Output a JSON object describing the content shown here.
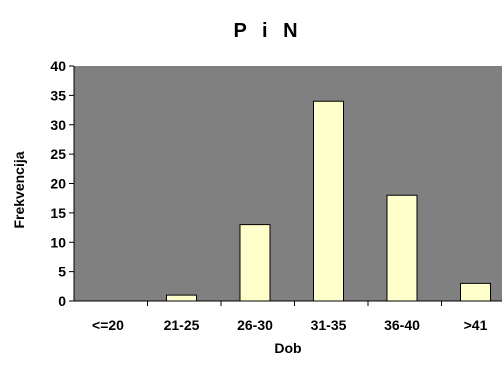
{
  "chart_data": {
    "type": "bar",
    "title": "P i N",
    "xlabel": "Dob",
    "ylabel": "Frekvencija",
    "categories": [
      "<=20",
      "21-25",
      "26-30",
      "31-35",
      "36-40",
      ">41"
    ],
    "values": [
      0,
      1,
      13,
      34,
      18,
      3
    ],
    "ylim": [
      0,
      40
    ],
    "yticks": [
      "0",
      "5",
      "10",
      "15",
      "20",
      "25",
      "30",
      "35",
      "40"
    ],
    "grid": false,
    "legend": "none",
    "colors": {
      "plot_bg": "#808080",
      "bar_fill": "#ffffcc",
      "bar_stroke": "#000000"
    }
  }
}
